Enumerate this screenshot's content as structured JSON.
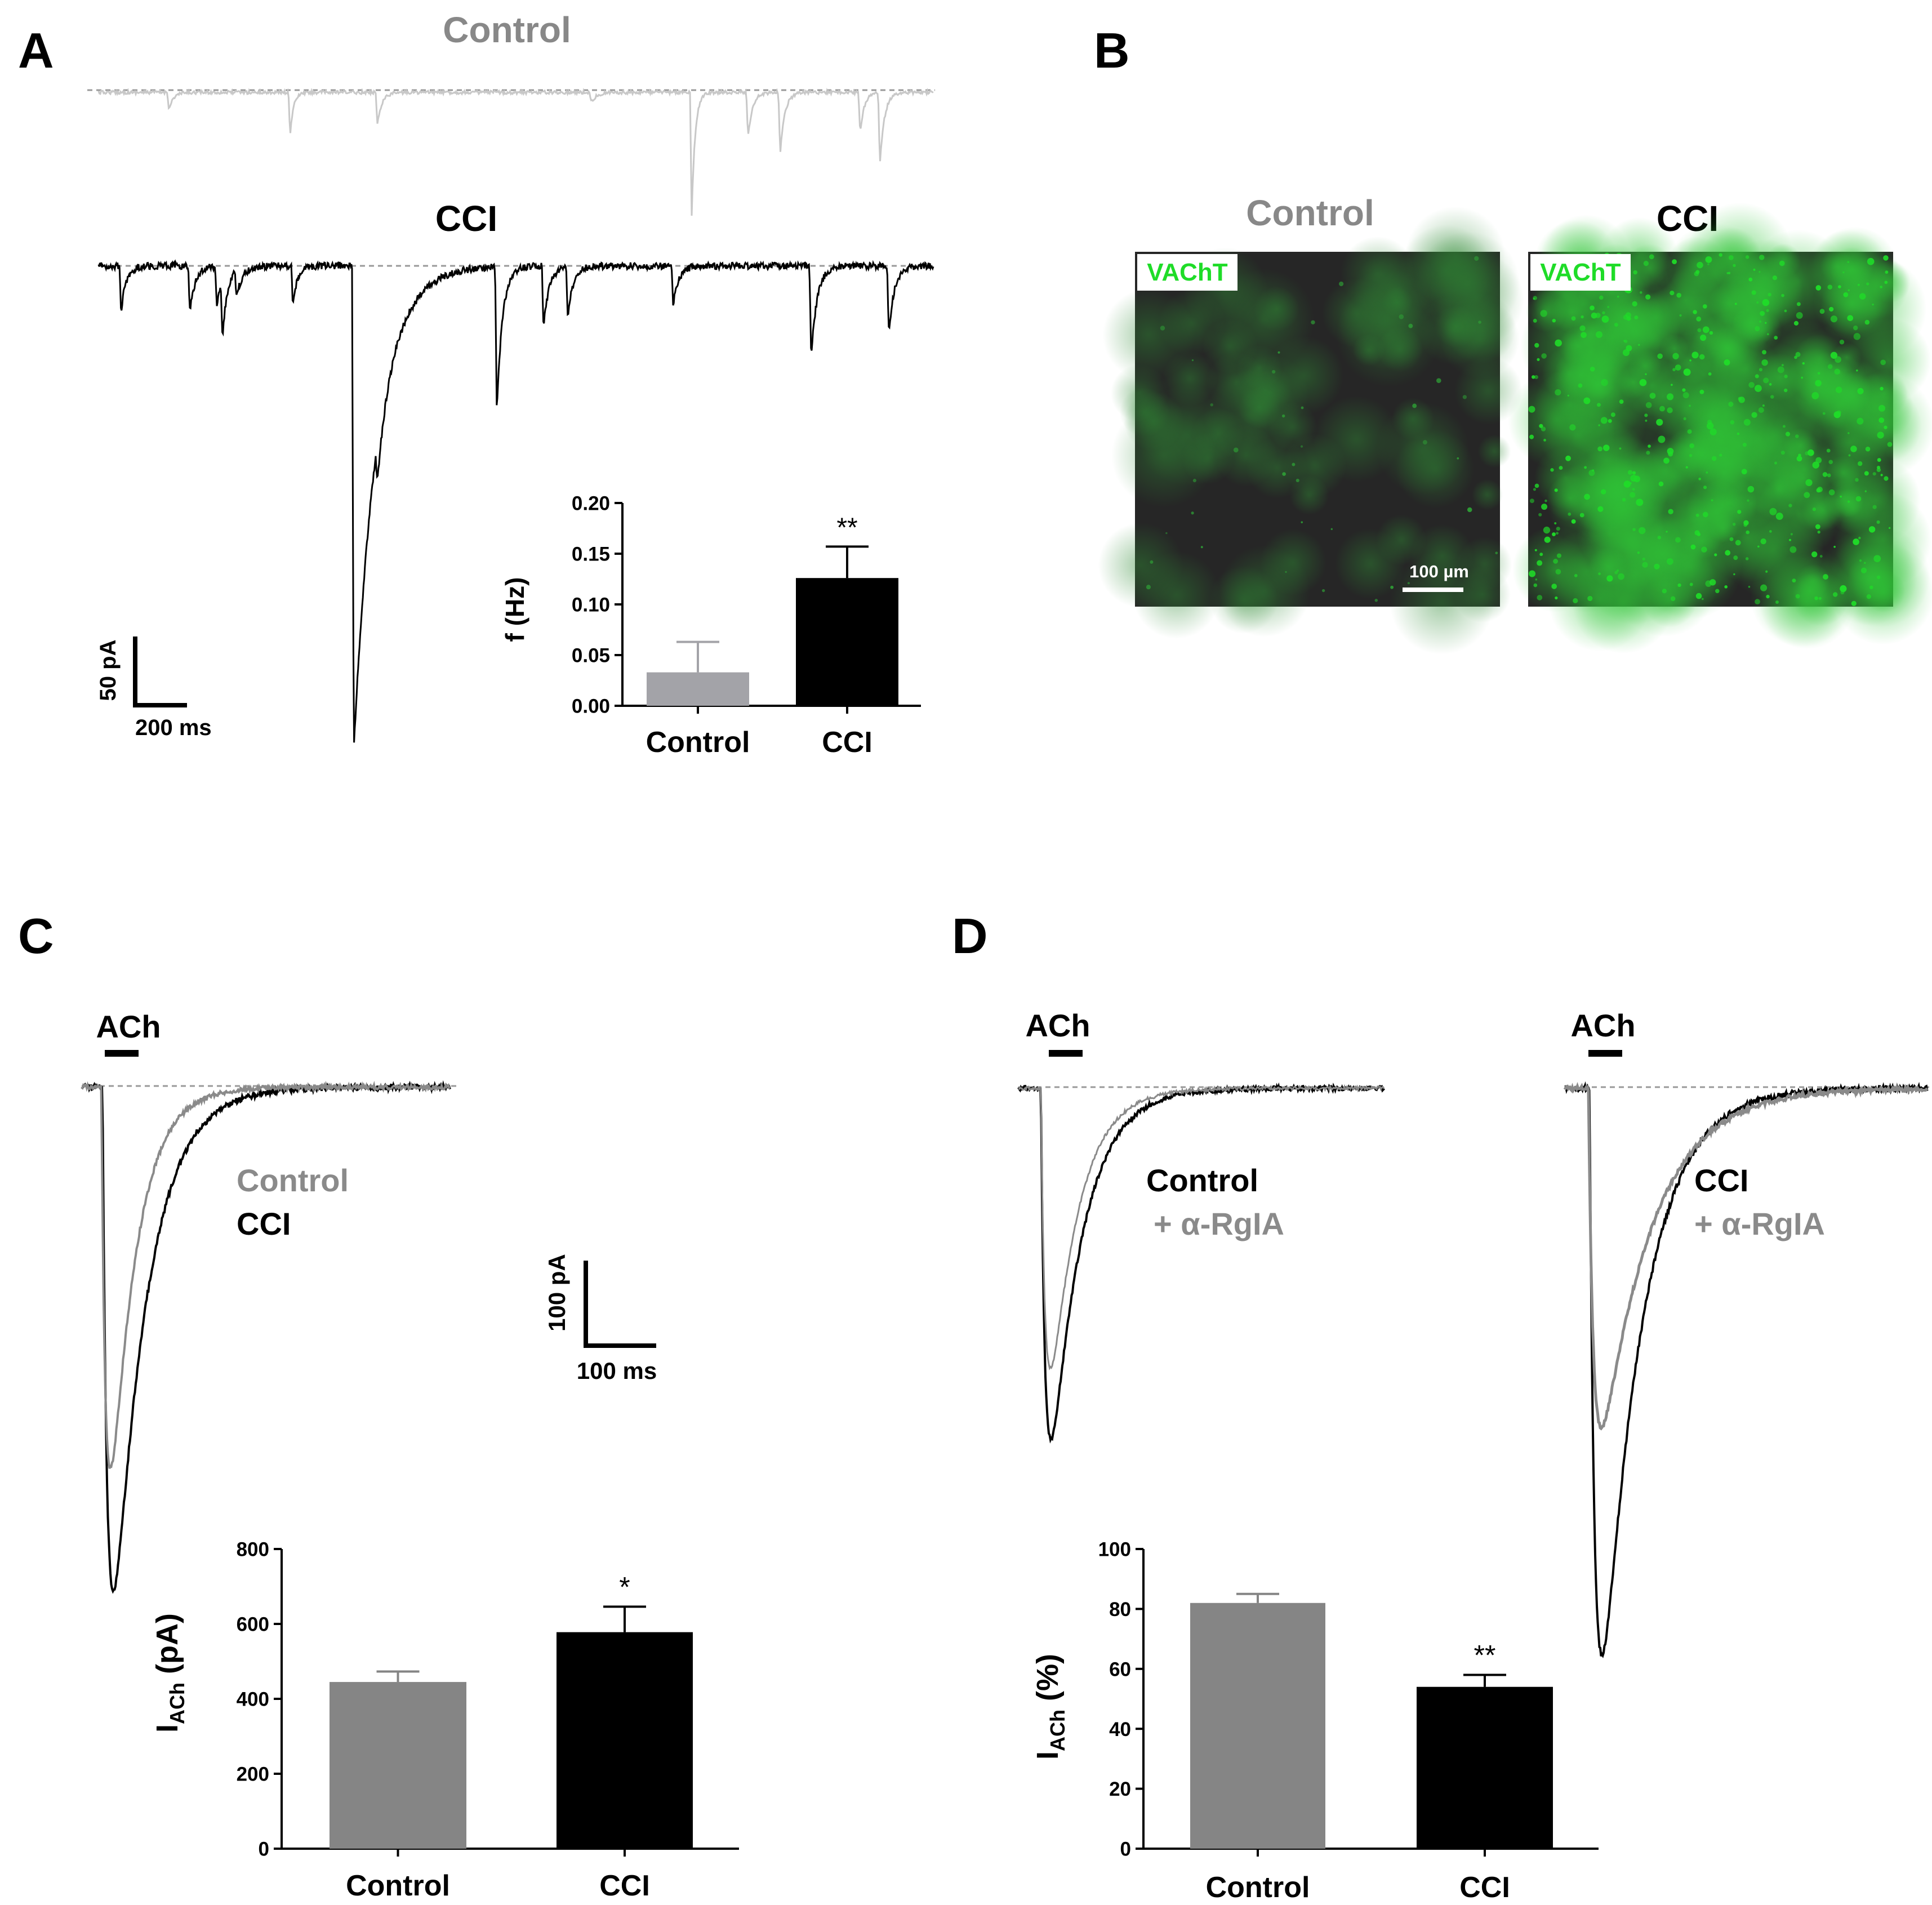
{
  "colors": {
    "control_trace_A": "#c8c8c8",
    "control_label_A": "#888888",
    "cci": "#000000",
    "control_bar_A": "#a3a3a8",
    "control_bar": "#858585",
    "control_trace": "#8a8a8a",
    "vacht_green": "#1fdc28",
    "micro_bg": "#2a2a2a"
  },
  "panels": {
    "A": {
      "letter": "A",
      "control_label": "Control",
      "cci_label": "CCI",
      "scale_y": "50 pA",
      "scale_x": "200 ms"
    },
    "B": {
      "letter": "B",
      "control_label": "Control",
      "cci_label": "CCI",
      "stain_label_left": "VAChT",
      "stain_label_right": "VAChT",
      "scale_bar": "100 µm"
    },
    "C": {
      "letter": "C",
      "ach_label": "ACh",
      "legend_control": "Control",
      "legend_cci": "CCI",
      "scale_y": "100 pA",
      "scale_x": "100 ms"
    },
    "D": {
      "letter": "D",
      "ach_label_left": "ACh",
      "ach_label_right": "ACh",
      "left_label": "Control",
      "left_drug": "+ α-RgIA",
      "right_label": "CCI",
      "right_drug": "+ α-RgIA"
    }
  },
  "chart_data": [
    {
      "panel": "A",
      "type": "bar",
      "categories": [
        "Control",
        "CCI"
      ],
      "values": [
        0.033,
        0.126
      ],
      "errors": [
        0.03,
        0.031
      ],
      "significance": [
        "",
        "**"
      ],
      "ylabel": "f (Hz)",
      "ylim": [
        0,
        0.2
      ],
      "yticks": [
        "0.00",
        "0.05",
        "0.10",
        "0.15",
        "0.20"
      ]
    },
    {
      "panel": "C",
      "type": "bar",
      "categories": [
        "Control",
        "CCI"
      ],
      "values": [
        445,
        578
      ],
      "errors": [
        28,
        68
      ],
      "significance": [
        "",
        "*"
      ],
      "ylabel": "I",
      "ylabel_sub": "ACh",
      "ylabel_unit": " (pA)",
      "ylim": [
        0,
        800
      ],
      "yticks": [
        "0",
        "200",
        "400",
        "600",
        "800"
      ]
    },
    {
      "panel": "D",
      "type": "bar",
      "categories": [
        "Control",
        "CCI"
      ],
      "values": [
        82,
        54
      ],
      "errors": [
        3,
        4
      ],
      "significance": [
        "",
        "**"
      ],
      "ylabel": "I",
      "ylabel_sub": "ACh",
      "ylabel_unit": " (%)",
      "ylim": [
        0,
        100
      ],
      "yticks": [
        "0",
        "20",
        "40",
        "60",
        "80",
        "100"
      ]
    }
  ]
}
